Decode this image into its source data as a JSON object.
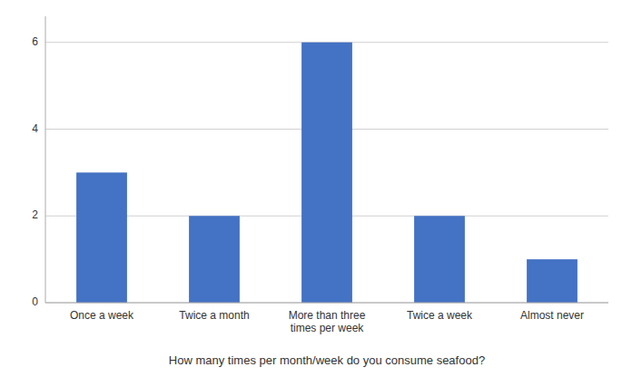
{
  "chart_data": {
    "type": "bar",
    "categories": [
      "Once a week",
      "Twice a month",
      "More than three\ntimes per week",
      "Twice a week",
      "Almost never"
    ],
    "values": [
      3,
      2,
      6,
      2,
      1
    ],
    "color": "#4472C4",
    "ylim": [
      0,
      6.6
    ],
    "yticks": [
      0,
      2,
      4,
      6
    ],
    "grid": true,
    "xlabel": "How many times per month/week do you consume seafood?"
  }
}
